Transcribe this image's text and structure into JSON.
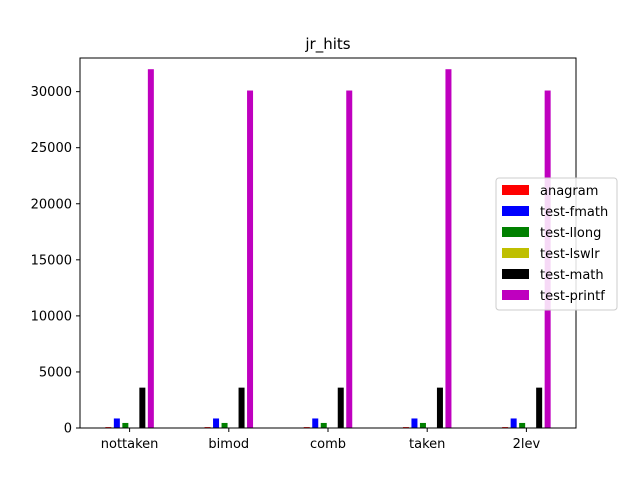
{
  "chart_data": {
    "type": "bar",
    "title": "jr_hits",
    "xlabel": "",
    "ylabel": "",
    "categories": [
      "nottaken",
      "bimod",
      "comb",
      "taken",
      "2lev"
    ],
    "ylim": [
      0,
      33000
    ],
    "yticks": [
      0,
      5000,
      10000,
      15000,
      20000,
      25000,
      30000
    ],
    "ytick_labels": [
      "0",
      "5000",
      "10000",
      "15000",
      "20000",
      "25000",
      "30000"
    ],
    "grid": false,
    "legend_position": "center-right",
    "series": [
      {
        "name": "anagram",
        "color": "#ff0000",
        "values": [
          80,
          80,
          80,
          80,
          80
        ]
      },
      {
        "name": "test-fmath",
        "color": "#0000ff",
        "values": [
          850,
          850,
          850,
          850,
          850
        ]
      },
      {
        "name": "test-llong",
        "color": "#008000",
        "values": [
          450,
          450,
          450,
          450,
          450
        ]
      },
      {
        "name": "test-lswlr",
        "color": "#bfbf00",
        "values": [
          40,
          40,
          40,
          40,
          40
        ]
      },
      {
        "name": "test-math",
        "color": "#000000",
        "values": [
          3600,
          3600,
          3600,
          3600,
          3600
        ]
      },
      {
        "name": "test-printf",
        "color": "#bf00bf",
        "values": [
          32000,
          30100,
          30100,
          32000,
          30100
        ]
      }
    ]
  }
}
